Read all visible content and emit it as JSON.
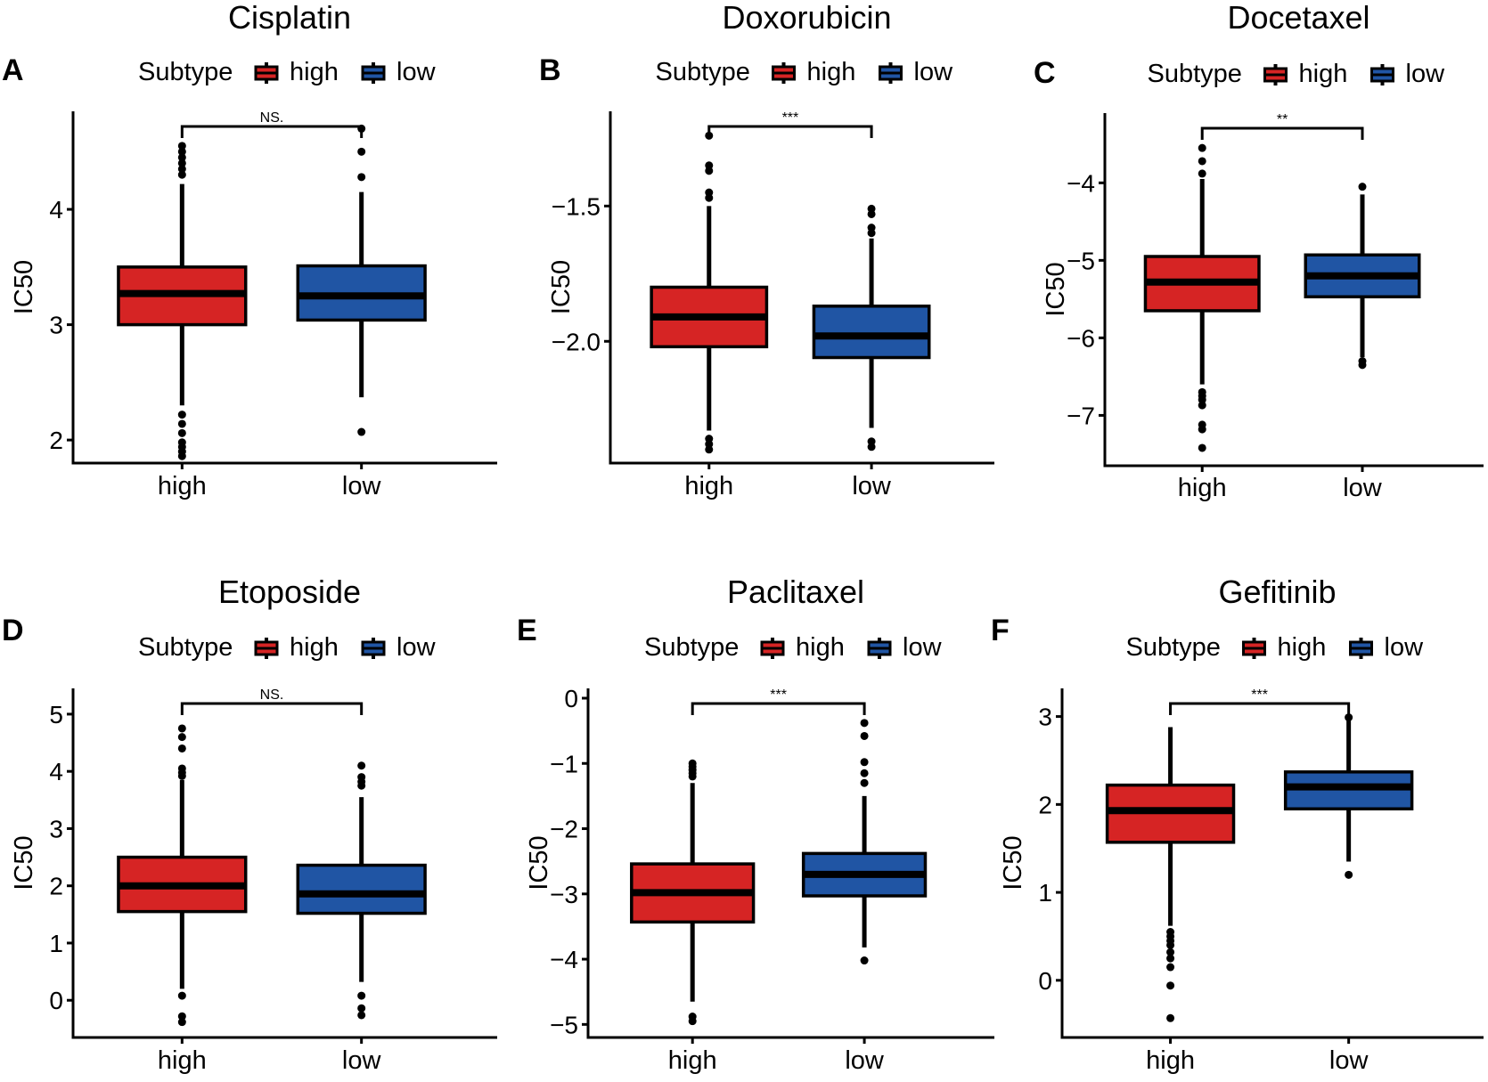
{
  "colors": {
    "high": "#d62424",
    "low": "#2055a4",
    "ink": "#000000"
  },
  "legend": {
    "title": "Subtype",
    "high": "high",
    "low": "low"
  },
  "y_axis_label": "IC50",
  "chart_data": [
    {
      "type": "boxplot",
      "panel": "A",
      "title": "Cisplatin",
      "ylabel": "IC50",
      "categories": [
        "high",
        "low"
      ],
      "ylim": [
        1.8,
        4.85
      ],
      "ticks": [
        2,
        3,
        4
      ],
      "tick_labels": [
        "2",
        "3",
        "4"
      ],
      "significance": "NS.",
      "boxes": [
        {
          "name": "high",
          "min": 2.3,
          "q1": 3.0,
          "median": 3.27,
          "q3": 3.5,
          "max": 4.22,
          "outliers": [
            4.55,
            4.5,
            4.45,
            4.4,
            4.35,
            4.3,
            2.22,
            2.14,
            2.06,
            1.98,
            1.94,
            1.9,
            1.86
          ]
        },
        {
          "name": "low",
          "min": 2.37,
          "q1": 3.04,
          "median": 3.25,
          "q3": 3.51,
          "max": 4.15,
          "outliers": [
            4.7,
            4.5,
            4.28,
            2.07
          ]
        }
      ]
    },
    {
      "type": "boxplot",
      "panel": "B",
      "title": "Doxorubicin",
      "ylabel": "IC50",
      "categories": [
        "high",
        "low"
      ],
      "ylim": [
        -2.45,
        -1.15
      ],
      "ticks": [
        -2.0,
        -1.5
      ],
      "tick_labels": [
        "−2.0",
        "−1.5"
      ],
      "significance": "***",
      "boxes": [
        {
          "name": "high",
          "min": -2.33,
          "q1": -2.02,
          "median": -1.91,
          "q3": -1.8,
          "max": -1.5,
          "outliers": [
            -1.24,
            -1.35,
            -1.37,
            -1.45,
            -1.47,
            -2.36,
            -2.38,
            -2.4
          ]
        },
        {
          "name": "low",
          "min": -2.32,
          "q1": -2.06,
          "median": -1.98,
          "q3": -1.87,
          "max": -1.62,
          "outliers": [
            -1.51,
            -1.53,
            -1.58,
            -1.6,
            -2.37,
            -2.39
          ]
        }
      ]
    },
    {
      "type": "boxplot",
      "panel": "C",
      "title": "Docetaxel",
      "ylabel": "IC50",
      "categories": [
        "high",
        "low"
      ],
      "ylim": [
        -7.65,
        -3.1
      ],
      "ticks": [
        -7,
        -6,
        -5,
        -4
      ],
      "tick_labels": [
        "−7",
        "−6",
        "−5",
        "−4"
      ],
      "significance": "**",
      "boxes": [
        {
          "name": "high",
          "min": -6.6,
          "q1": -5.65,
          "median": -5.28,
          "q3": -4.95,
          "max": -3.95,
          "outliers": [
            -3.55,
            -3.72,
            -3.88,
            -6.7,
            -6.75,
            -6.8,
            -6.87,
            -7.12,
            -7.18,
            -7.42
          ]
        },
        {
          "name": "low",
          "min": -6.25,
          "q1": -5.47,
          "median": -5.2,
          "q3": -4.93,
          "max": -4.15,
          "outliers": [
            -4.05,
            -6.3,
            -6.35
          ]
        }
      ]
    },
    {
      "type": "boxplot",
      "panel": "D",
      "title": "Etoposide",
      "ylabel": "IC50",
      "categories": [
        "high",
        "low"
      ],
      "ylim": [
        -0.65,
        5.45
      ],
      "ticks": [
        0,
        1,
        2,
        3,
        4,
        5
      ],
      "tick_labels": [
        "0",
        "1",
        "2",
        "3",
        "4",
        "5"
      ],
      "significance": "NS.",
      "boxes": [
        {
          "name": "high",
          "min": 0.2,
          "q1": 1.55,
          "median": 2.0,
          "q3": 2.5,
          "max": 3.85,
          "outliers": [
            4.75,
            4.6,
            4.4,
            4.05,
            3.98,
            3.92,
            0.08,
            -0.28,
            -0.38
          ]
        },
        {
          "name": "low",
          "min": 0.32,
          "q1": 1.52,
          "median": 1.86,
          "q3": 2.36,
          "max": 3.55,
          "outliers": [
            4.1,
            3.9,
            3.82,
            3.75,
            0.08,
            -0.14,
            -0.26
          ]
        }
      ]
    },
    {
      "type": "boxplot",
      "panel": "E",
      "title": "Paclitaxel",
      "ylabel": "IC50",
      "categories": [
        "high",
        "low"
      ],
      "ylim": [
        -5.2,
        0.15
      ],
      "ticks": [
        -5,
        -4,
        -3,
        -2,
        -1,
        0
      ],
      "tick_labels": [
        "−5",
        "−4",
        "−3",
        "−2",
        "−1",
        "0"
      ],
      "significance": "***",
      "boxes": [
        {
          "name": "high",
          "min": -4.65,
          "q1": -3.43,
          "median": -2.98,
          "q3": -2.54,
          "max": -1.3,
          "outliers": [
            -1.0,
            -1.05,
            -1.1,
            -1.15,
            -1.2,
            -4.88,
            -4.95
          ]
        },
        {
          "name": "low",
          "min": -3.82,
          "q1": -3.03,
          "median": -2.7,
          "q3": -2.38,
          "max": -1.5,
          "outliers": [
            -0.38,
            -0.58,
            -0.98,
            -1.15,
            -1.3,
            -4.02
          ]
        }
      ]
    },
    {
      "type": "boxplot",
      "panel": "F",
      "title": "Gefitinib",
      "ylabel": "IC50",
      "categories": [
        "high",
        "low"
      ],
      "ylim": [
        -0.65,
        3.32
      ],
      "ticks": [
        0,
        1,
        2,
        3
      ],
      "tick_labels": [
        "0",
        "1",
        "2",
        "3"
      ],
      "significance": "***",
      "boxes": [
        {
          "name": "high",
          "min": 0.62,
          "q1": 1.57,
          "median": 1.93,
          "q3": 2.22,
          "max": 2.88,
          "outliers": [
            0.55,
            0.5,
            0.45,
            0.4,
            0.32,
            0.25,
            0.15,
            -0.06,
            -0.43
          ]
        },
        {
          "name": "low",
          "min": 1.35,
          "q1": 1.95,
          "median": 2.2,
          "q3": 2.37,
          "max": 2.98,
          "outliers": [
            2.99,
            1.2
          ]
        }
      ]
    }
  ]
}
